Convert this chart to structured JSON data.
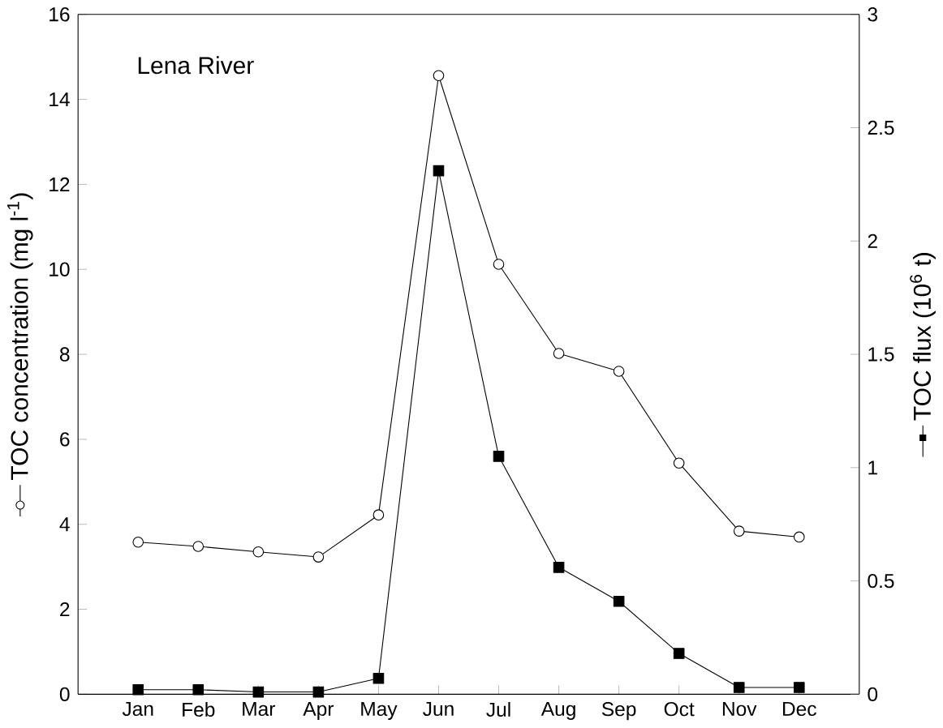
{
  "chart_data": {
    "type": "line",
    "categories": [
      "Jan",
      "Feb",
      "Mar",
      "Apr",
      "May",
      "Jun",
      "Jul",
      "Aug",
      "Sep",
      "Oct",
      "Nov",
      "Dec"
    ],
    "ylabel": "TOC concentration (mg l$^{-1}$)",
    "y2label": "TOC flux (10$^{6}$ t)",
    "ylim": [
      0,
      16
    ],
    "yticks": [
      0,
      2,
      4,
      6,
      8,
      10,
      12,
      14,
      16
    ],
    "y2lim": [
      0,
      3
    ],
    "y2ticks": [
      0,
      0.5,
      1,
      1.5,
      2,
      2.5,
      3
    ],
    "annotations": [
      "Lena River"
    ],
    "series": [
      {
        "color": "#000000",
        "marker": "circle",
        "values": [
          3.58,
          3.48,
          3.35,
          3.23,
          4.22,
          14.56,
          10.12,
          8.02,
          7.6,
          5.44,
          3.84,
          3.7
        ]
      },
      {
        "color": "#000000",
        "marker": "square",
        "axis": "y2",
        "values": [
          0.02,
          0.02,
          0.01,
          0.01,
          0.07,
          2.31,
          1.05,
          0.56,
          0.41,
          0.18,
          0.03,
          0.03
        ]
      }
    ]
  }
}
